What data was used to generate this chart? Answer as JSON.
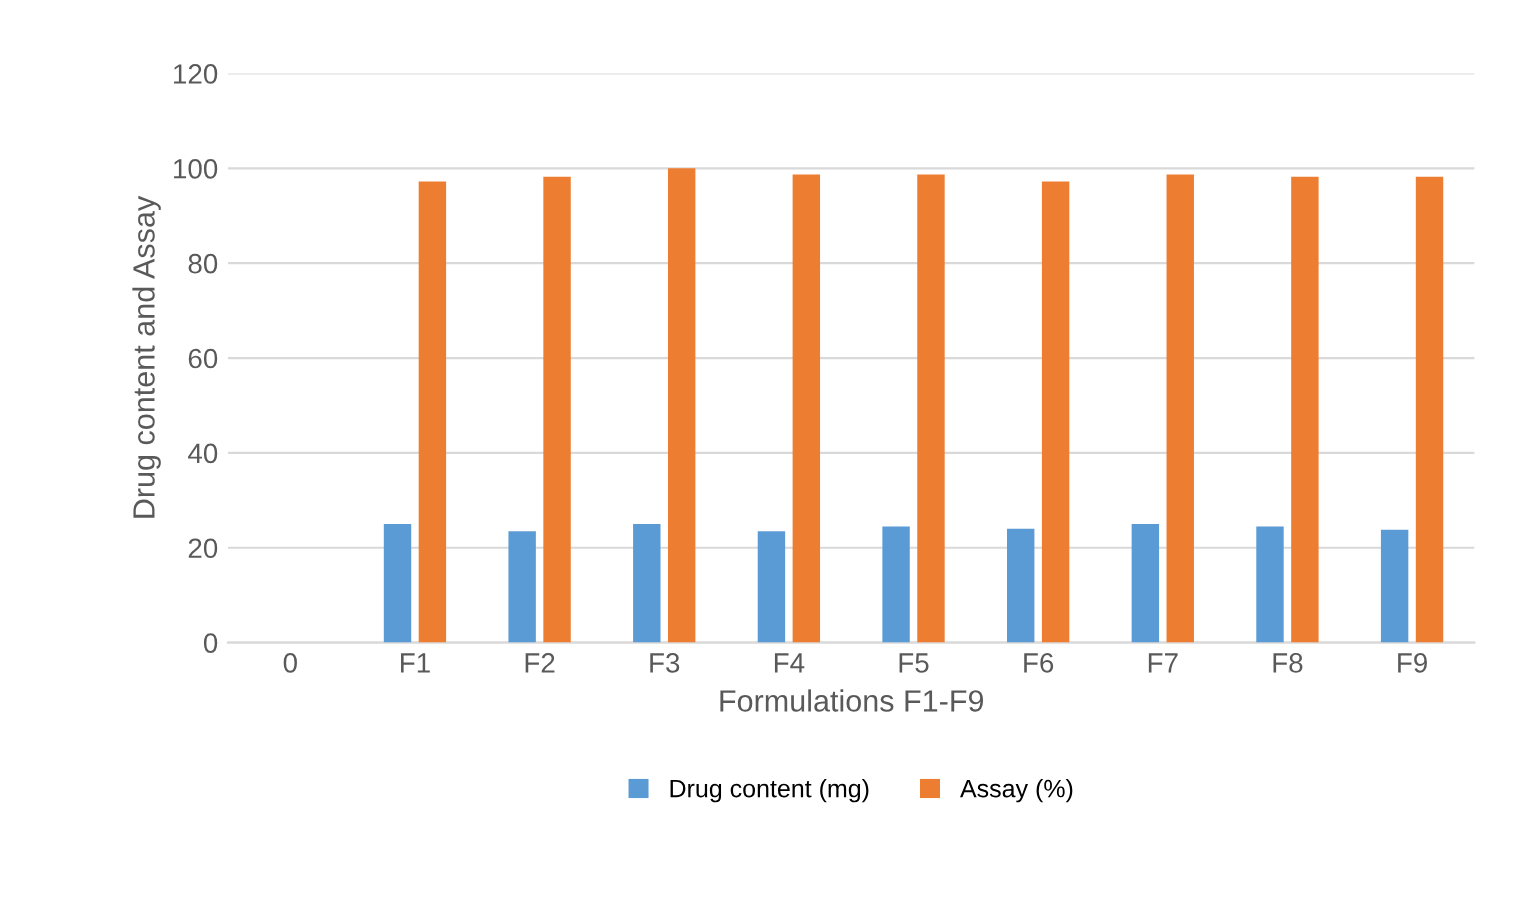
{
  "chart_data": {
    "type": "bar",
    "xlabel": "Formulations F1-F9",
    "ylabel": "Drug content and Assay",
    "categories": [
      "0",
      "F1",
      "F2",
      "F3",
      "F4",
      "F5",
      "F6",
      "F7",
      "F8",
      "F9"
    ],
    "series": [
      {
        "name": "Drug content (mg)",
        "color": "#5b9bd5",
        "values": [
          0,
          25,
          23.5,
          25,
          23.5,
          24.5,
          24,
          25,
          24.5,
          23.8
        ]
      },
      {
        "name": "Assay (%)",
        "color": "#ed7d31",
        "values": [
          0,
          97.2,
          98.2,
          100,
          98.7,
          98.7,
          97.2,
          98.7,
          98.2,
          98.2
        ]
      }
    ],
    "ylim": [
      0,
      120
    ],
    "yticks": [
      0,
      20,
      40,
      60,
      80,
      100,
      120
    ],
    "grid": "y",
    "legend": "bottom"
  }
}
